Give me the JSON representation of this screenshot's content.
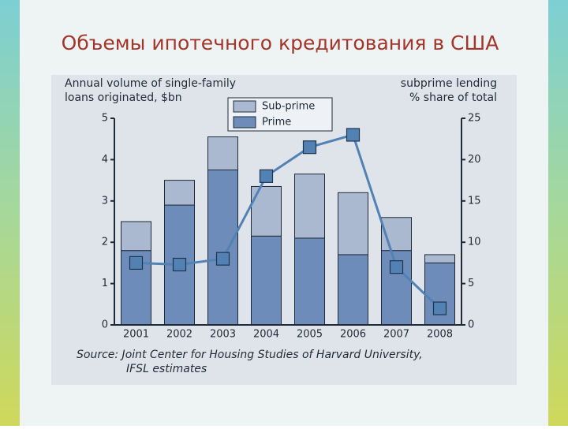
{
  "slide_title": "Объемы ипотечного кредитования в США",
  "chart_data": {
    "type": "bar",
    "ylabel": [
      "Annual volume of single-family",
      "loans originated, $bn"
    ],
    "y2label": [
      "subprime lending",
      "% share of total"
    ],
    "source": [
      "Source: Joint Center for Housing Studies of Harvard University,",
      "IFSL estimates"
    ],
    "categories": [
      "2001",
      "2002",
      "2003",
      "2004",
      "2005",
      "2006",
      "2007",
      "2008"
    ],
    "series": [
      {
        "name": "Prime",
        "color": "#6e8cb9",
        "values": [
          1.8,
          2.9,
          3.75,
          2.15,
          2.1,
          1.7,
          1.8,
          1.5
        ]
      },
      {
        "name": "Sub-prime",
        "color": "#aab9d0",
        "values": [
          0.7,
          0.6,
          0.8,
          1.2,
          1.55,
          1.5,
          0.8,
          0.2
        ]
      },
      {
        "name": "subprime share",
        "type": "line",
        "axis": "y2",
        "color": "#5281b4",
        "values": [
          7.5,
          7.3,
          8,
          18,
          21.5,
          23,
          7,
          2
        ]
      }
    ],
    "legend_order": [
      1,
      0
    ],
    "ylim": [
      0,
      5
    ],
    "yticks": [
      0,
      1,
      2,
      3,
      4,
      5
    ],
    "y2lim": [
      0,
      25
    ],
    "y2ticks": [
      0,
      5,
      10,
      15,
      20,
      25
    ]
  }
}
